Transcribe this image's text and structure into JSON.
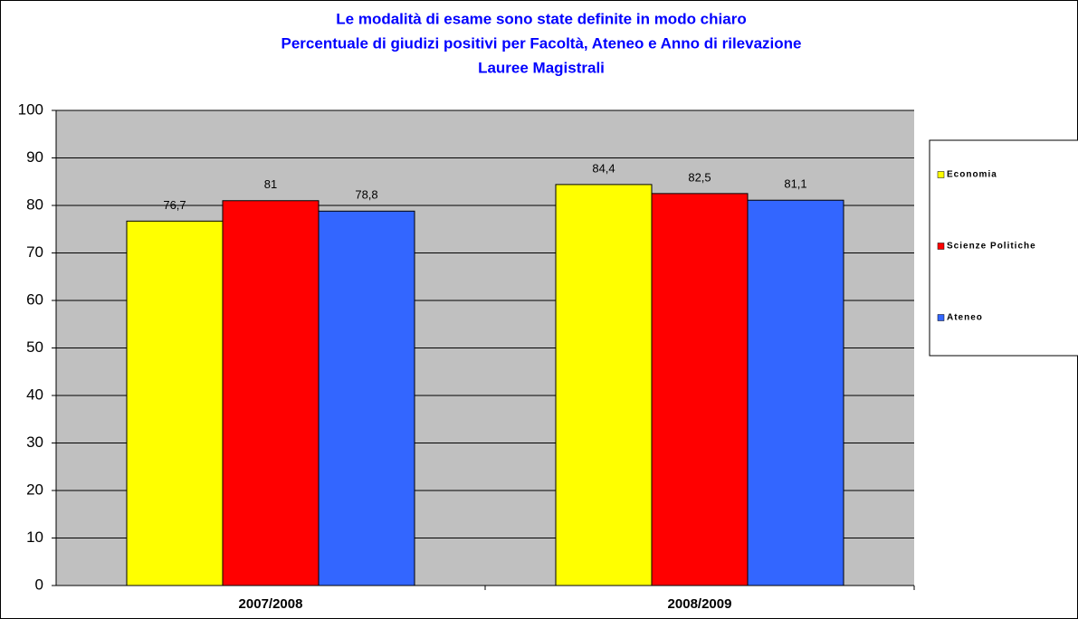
{
  "chart_data": {
    "type": "bar",
    "title": [
      "Le modalità di esame sono state definite in modo chiaro",
      "Percentuale di giudizi positivi per Facoltà,  Ateneo e Anno di rilevazione",
      "Lauree Magistrali"
    ],
    "categories": [
      "2007/2008",
      "2008/2009"
    ],
    "series": [
      {
        "name": "Economia",
        "color": "#ffff00",
        "values": [
          76.7,
          84.4
        ],
        "value_labels": [
          "76,7",
          "84,4"
        ]
      },
      {
        "name": "Scienze Politiche",
        "color": "#ff0000",
        "values": [
          81,
          82.5
        ],
        "value_labels": [
          "81",
          "82,5"
        ]
      },
      {
        "name": "Ateneo",
        "color": "#3366ff",
        "values": [
          78.8,
          81.1
        ],
        "value_labels": [
          "78,8",
          "81,1"
        ]
      }
    ],
    "ylim": [
      0,
      100
    ],
    "yticks": [
      0,
      10,
      20,
      30,
      40,
      50,
      60,
      70,
      80,
      90,
      100
    ],
    "grid": true,
    "legend": "right"
  }
}
